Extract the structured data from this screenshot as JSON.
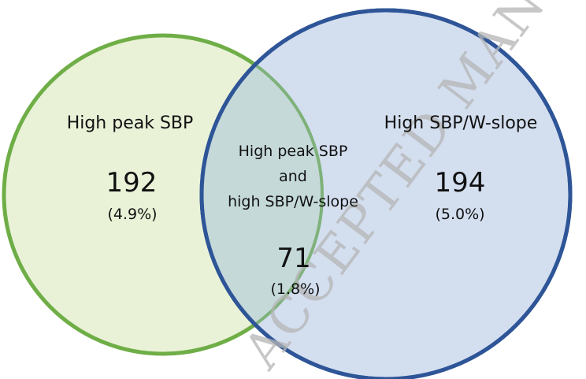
{
  "sets": [
    {
      "id": "left",
      "title": "High peak SBP",
      "count": "192",
      "percent": "(4.9%)",
      "fill": "#e9f2d7",
      "stroke": "#6fae47"
    },
    {
      "id": "right",
      "title": "High SBP/W-slope",
      "count": "194",
      "percent": "(5.0%)",
      "fill": "#d3deef",
      "stroke": "#2e5597"
    }
  ],
  "overlap": {
    "title_lines": [
      "High peak SBP",
      "and",
      "high SBP/W-slope"
    ],
    "count": "71",
    "percent": "(1.8%)",
    "fill": "#c5d9d9",
    "stroke": "#7fb27a"
  },
  "watermark": "ACCEPTED MANUSCRIPT"
}
